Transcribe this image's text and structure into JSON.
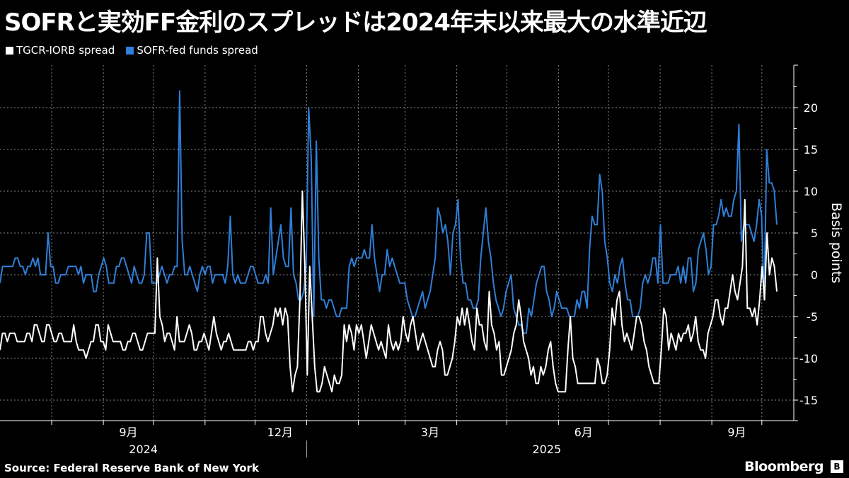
{
  "title": "SOFRと実効FF金利のスプレッドは2024年末以来最大の水準近辺",
  "source": "Source: Federal Reserve Bank of New York",
  "brand": "Bloomberg",
  "colors": {
    "tgcr": "#ffffff",
    "sofr": "#2f7fd8",
    "grid": "#8a8a8a"
  },
  "chart_data": {
    "type": "line",
    "title": "SOFRと実効FF金利のスプレッドは2024年末以来最大の水準近辺",
    "ylabel": "Basis points",
    "ylim": [
      -17.5,
      25
    ],
    "yticks": [
      -15,
      -10,
      -5,
      0,
      5,
      10,
      15,
      20
    ],
    "x_range": [
      "2024-07-01",
      "2025-10-10"
    ],
    "month_ticks": [
      "9月",
      "12月",
      "3月",
      "6月",
      "9月"
    ],
    "year_labels": [
      "2024",
      "2025"
    ],
    "legend_position": "top-left",
    "series": [
      {
        "name": "TGCR-IORB spread",
        "color": "#ffffff",
        "values": [
          -9,
          -7,
          -7,
          -8,
          -7,
          -7,
          -7,
          -8,
          -8,
          -8,
          -8,
          -7,
          -7,
          -8,
          -6,
          -6,
          -7,
          -8,
          -8,
          -6,
          -6,
          -7,
          -8,
          -8,
          -7,
          -7,
          -8,
          -8,
          -8,
          -8,
          -6,
          -8,
          -9,
          -9,
          -9,
          -10,
          -9,
          -8,
          -8,
          -6,
          -6,
          -8,
          -8,
          -9,
          -6,
          -7,
          -8,
          -8,
          -8,
          -8,
          -9,
          -9,
          -8,
          -8,
          -7,
          -7,
          -8,
          -9,
          -9,
          -8,
          -7,
          -7,
          -7,
          -7,
          2,
          -5,
          -6,
          -8,
          -7,
          -7,
          -8,
          -9,
          -5,
          -8,
          -8,
          -8,
          -7,
          -6,
          -7,
          -9,
          -9,
          -8,
          -8,
          -7,
          -8,
          -9,
          -7,
          -5,
          -7,
          -8,
          -9,
          -8,
          -8,
          -7,
          -8,
          -9,
          -9,
          -9,
          -9,
          -9,
          -9,
          -8,
          -8,
          -9,
          -8,
          -8,
          -5,
          -5,
          -7,
          -8,
          -7,
          -6,
          -4,
          -5,
          -4,
          -6,
          -4,
          -5,
          -11,
          -14,
          -12,
          -11,
          -3,
          10,
          1,
          -12,
          1,
          -5,
          -11,
          -14,
          -14,
          -13,
          -11,
          -12,
          -13,
          -14,
          -12,
          -13,
          -13,
          -12,
          -6,
          -8,
          -6,
          -7,
          -9,
          -6,
          -7,
          -6,
          -8,
          -10,
          -8,
          -6,
          -7,
          -8,
          -9,
          -8,
          -9,
          -10,
          -6,
          -8,
          -9,
          -8,
          -9,
          -8,
          -5,
          -7,
          -8,
          -6,
          -5,
          -7,
          -9,
          -8,
          -7,
          -8,
          -9,
          -10,
          -11,
          -11,
          -9,
          -8,
          -9,
          -12,
          -12,
          -11,
          -10,
          -8,
          -5,
          -6,
          -4,
          -6,
          -4,
          -6,
          -8,
          -9,
          -4,
          -6,
          -6,
          -8,
          -9,
          -2,
          -6,
          -7,
          -9,
          -8,
          -12,
          -12,
          -11,
          -10,
          -9,
          -7,
          -6,
          -3,
          -5,
          -8,
          -9,
          -10,
          -12,
          -11,
          -13,
          -13,
          -11,
          -12,
          -11,
          -9,
          -8,
          -11,
          -13,
          -14,
          -14,
          -14,
          -14,
          -9,
          -5,
          -10,
          -11,
          -13,
          -13,
          -13,
          -13,
          -13,
          -13,
          -13,
          -13,
          -10,
          -11,
          -13,
          -13,
          -12,
          -9,
          -4,
          -6,
          -3,
          -2,
          -6,
          -8,
          -7,
          -8,
          -9,
          -7,
          -5,
          -5,
          -6,
          -8,
          -9,
          -11,
          -12,
          -13,
          -13,
          -13,
          -9,
          -4,
          -5,
          -9,
          -7,
          -8,
          -9,
          -7,
          -8,
          -7,
          -7,
          -6,
          -8,
          -7,
          -5,
          -8,
          -9,
          -9,
          -10,
          -7,
          -6,
          -5,
          -3,
          -3,
          -5,
          -6,
          -4,
          -4,
          -2,
          0,
          -2,
          -3,
          -1,
          1,
          9,
          -4,
          -4,
          -5,
          -4,
          -6,
          -3,
          1,
          -3,
          5,
          0,
          2,
          1,
          -2
        ]
      },
      {
        "name": "SOFR-fed funds spread",
        "color": "#2f7fd8",
        "values": [
          -1,
          1,
          1,
          1,
          1,
          1,
          2,
          2,
          1,
          1,
          0,
          1,
          1,
          2,
          1,
          2,
          0,
          0,
          0,
          5,
          1,
          1,
          -1,
          -1,
          0,
          0,
          0,
          1,
          1,
          1,
          1,
          0,
          1,
          -1,
          0,
          0,
          0,
          -2,
          -2,
          0,
          1,
          2,
          1,
          -1,
          -1,
          -1,
          1,
          1,
          2,
          2,
          1,
          0,
          -1,
          1,
          0,
          -1,
          -1,
          0,
          5,
          5,
          -1,
          -1,
          -1,
          0,
          1,
          0,
          -1,
          0,
          0,
          1,
          1,
          22,
          4,
          0,
          0,
          1,
          0,
          -1,
          -2,
          0,
          1,
          0,
          1,
          1,
          -1,
          0,
          0,
          0,
          0,
          -1,
          1,
          7,
          0,
          -1,
          0,
          -1,
          -1,
          -1,
          0,
          1,
          1,
          0,
          -1,
          -1,
          -1,
          0,
          -1,
          8,
          0,
          2,
          4,
          6,
          2,
          1,
          1,
          8,
          0,
          -1,
          -3,
          -3,
          -2,
          1,
          20,
          14,
          -5,
          16,
          2,
          -3,
          -3,
          -4,
          -3,
          -3,
          -4,
          -5,
          -5,
          -4,
          -4,
          -4,
          1,
          2,
          1,
          2,
          2,
          2,
          3,
          2,
          2,
          6,
          2,
          0,
          -2,
          0,
          0,
          3,
          1,
          2,
          1,
          0,
          -1,
          -1,
          -1,
          -3,
          -4,
          -5,
          -5,
          -4,
          -3,
          -2,
          -4,
          -3,
          -2,
          0,
          2,
          8,
          7,
          5,
          6,
          4,
          0,
          5,
          6,
          9,
          2,
          -1,
          -1,
          -3,
          -3,
          -4,
          -4,
          -3,
          2,
          5,
          8,
          4,
          2,
          -1,
          -3,
          -4,
          -5,
          -4,
          -2,
          -1,
          0,
          -4,
          -5,
          -6,
          -6,
          -7,
          -7,
          -4,
          -5,
          -3,
          -1,
          0,
          1,
          1,
          -2,
          -3,
          -5,
          -4,
          -2,
          -3,
          -4,
          -4,
          -4,
          -5,
          -5,
          -5,
          -3,
          -4,
          -2,
          -2,
          -4,
          3,
          7,
          6,
          6,
          12,
          10,
          4,
          2,
          -1,
          -2,
          0,
          -1,
          1,
          2,
          -1,
          -3,
          -3,
          -5,
          -5,
          -5,
          -4,
          -1,
          0,
          -1,
          0,
          2,
          2,
          -1,
          6,
          -1,
          -1,
          -1,
          0,
          0,
          0,
          1,
          -1,
          1,
          -1,
          2,
          2,
          -2,
          -1,
          3,
          4,
          5,
          3,
          0,
          1,
          6,
          6,
          7,
          9,
          7,
          8,
          7,
          7,
          9,
          10,
          18,
          4,
          6,
          6,
          6,
          5,
          4,
          6,
          9,
          7,
          -3,
          15,
          11,
          11,
          10,
          6
        ]
      }
    ]
  }
}
